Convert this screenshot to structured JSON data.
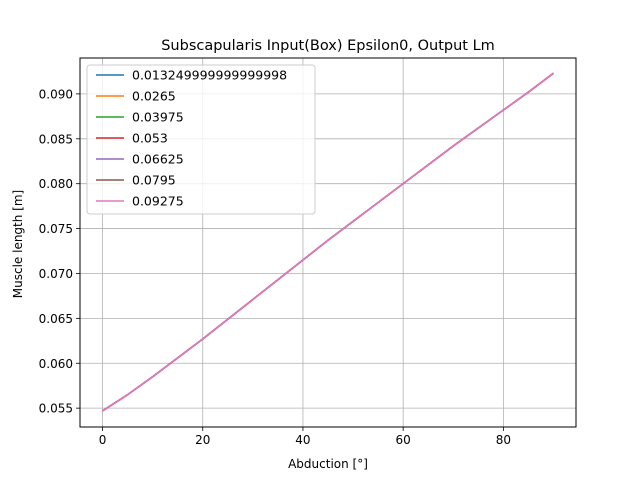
{
  "chart_data": {
    "type": "line",
    "title": "Subscapularis Input(Box) Epsilon0, Output Lm",
    "xlabel": "Abduction [°]",
    "ylabel": "Muscle length [m]",
    "xlim": [
      -4.5,
      94.5
    ],
    "ylim": [
      0.0529,
      0.094
    ],
    "xticks": [
      0,
      20,
      40,
      60,
      80
    ],
    "xtick_labels": [
      "0",
      "20",
      "40",
      "60",
      "80"
    ],
    "yticks": [
      0.055,
      0.06,
      0.065,
      0.07,
      0.075,
      0.08,
      0.085,
      0.09
    ],
    "ytick_labels": [
      "0.055",
      "0.060",
      "0.065",
      "0.070",
      "0.075",
      "0.080",
      "0.085",
      "0.090"
    ],
    "grid": true,
    "legend_position": "top-left",
    "x": [
      0,
      5,
      10,
      15,
      20,
      25,
      30,
      35,
      40,
      45,
      50,
      55,
      60,
      65,
      70,
      75,
      80,
      85,
      90
    ],
    "series": [
      {
        "name": "0.013249999999999998",
        "color": "#1f77b4",
        "values": [
          0.0547,
          0.0565,
          0.0585,
          0.0606,
          0.0627,
          0.0649,
          0.0671,
          0.0693,
          0.0715,
          0.0737,
          0.0758,
          0.0779,
          0.08,
          0.0821,
          0.0842,
          0.0862,
          0.0882,
          0.0902,
          0.0923
        ]
      },
      {
        "name": "0.0265",
        "color": "#ff7f0e",
        "values": [
          0.0547,
          0.0565,
          0.0585,
          0.0606,
          0.0627,
          0.0649,
          0.0671,
          0.0693,
          0.0715,
          0.0737,
          0.0758,
          0.0779,
          0.08,
          0.0821,
          0.0842,
          0.0862,
          0.0882,
          0.0902,
          0.0923
        ]
      },
      {
        "name": "0.03975",
        "color": "#2ca02c",
        "values": [
          0.0547,
          0.0565,
          0.0585,
          0.0606,
          0.0627,
          0.0649,
          0.0671,
          0.0693,
          0.0715,
          0.0737,
          0.0758,
          0.0779,
          0.08,
          0.0821,
          0.0842,
          0.0862,
          0.0882,
          0.0902,
          0.0923
        ]
      },
      {
        "name": "0.053",
        "color": "#d62728",
        "values": [
          0.0547,
          0.0565,
          0.0585,
          0.0606,
          0.0627,
          0.0649,
          0.0671,
          0.0693,
          0.0715,
          0.0737,
          0.0758,
          0.0779,
          0.08,
          0.0821,
          0.0842,
          0.0862,
          0.0882,
          0.0902,
          0.0923
        ]
      },
      {
        "name": "0.06625",
        "color": "#9467bd",
        "values": [
          0.0547,
          0.0565,
          0.0585,
          0.0606,
          0.0627,
          0.0649,
          0.0671,
          0.0693,
          0.0715,
          0.0737,
          0.0758,
          0.0779,
          0.08,
          0.0821,
          0.0842,
          0.0862,
          0.0882,
          0.0902,
          0.0923
        ]
      },
      {
        "name": "0.0795",
        "color": "#8c564b",
        "values": [
          0.0547,
          0.0565,
          0.0585,
          0.0606,
          0.0627,
          0.0649,
          0.0671,
          0.0693,
          0.0715,
          0.0737,
          0.0758,
          0.0779,
          0.08,
          0.0821,
          0.0842,
          0.0862,
          0.0882,
          0.0902,
          0.0923
        ]
      },
      {
        "name": "0.09275",
        "color": "#e377c2",
        "values": [
          0.0547,
          0.0565,
          0.0585,
          0.0606,
          0.0627,
          0.0649,
          0.0671,
          0.0693,
          0.0715,
          0.0737,
          0.0758,
          0.0779,
          0.08,
          0.0821,
          0.0842,
          0.0862,
          0.0882,
          0.0902,
          0.0923
        ]
      }
    ]
  }
}
